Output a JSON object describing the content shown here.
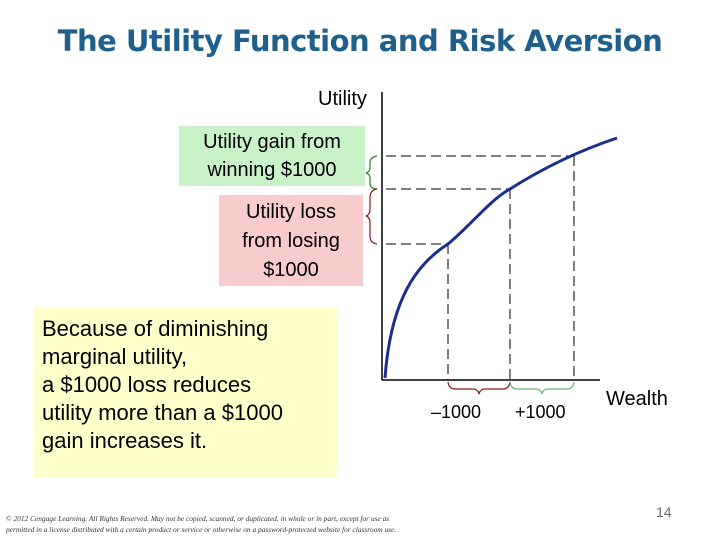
{
  "title": "The Utility Function and Risk Aversion",
  "axis": {
    "y_label": "Utility",
    "x_label": "Wealth"
  },
  "boxes": {
    "gain_lines": [
      "Utility gain from",
      "winning $1000"
    ],
    "loss_lines": [
      "Utility loss",
      "from losing",
      "$1000"
    ],
    "note_lines": [
      "Because of diminishing",
      "marginal utility,",
      "a $1000 loss reduces",
      "utility more than a $1000",
      "gain increases it."
    ]
  },
  "x_markers": {
    "minus": "–1000",
    "plus": "+1000"
  },
  "footer": {
    "copyright_lines": [
      "© 2012 Cengage Learning. All Rights Reserved. May not be copied, scanned, or duplicated, in whole or in part, except for use as",
      "permitted in a license distributed with a certain product or service or otherwise on a password-protected website for classroom use."
    ],
    "page_number": "14"
  },
  "colors": {
    "title": "#1f5f8b",
    "curve": "#1a2f8f",
    "gain_box": "#c9f2c9",
    "loss_box": "#f8cccc",
    "note_box": "#ffffcc",
    "bracket_green": "#2e7d32",
    "bracket_maroon": "#8b1a1a",
    "bracket_green_light": "#6fb56f"
  }
}
